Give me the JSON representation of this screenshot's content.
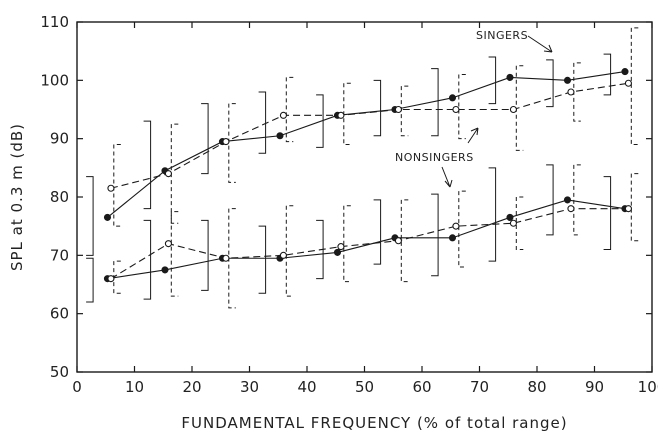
{
  "chart_data": {
    "type": "line",
    "xlabel": "FUNDAMENTAL FREQUENCY (% of total range)",
    "ylabel": "SPL at 0.3 m (dB)",
    "xlim": [
      0,
      100
    ],
    "ylim": [
      50,
      110
    ],
    "xticks": [
      0,
      10,
      20,
      30,
      40,
      50,
      60,
      70,
      80,
      90,
      100
    ],
    "yticks": [
      50,
      60,
      70,
      80,
      90,
      100,
      110
    ],
    "grid": false,
    "annotations": [
      "SINGERS",
      "NONSINGERS"
    ],
    "series": [
      {
        "group": "SINGERS",
        "level": "upper",
        "marker": "filled",
        "line": "solid",
        "x": [
          5,
          15,
          25,
          35,
          45,
          55,
          65,
          75,
          85,
          95
        ],
        "y": [
          76.5,
          84.5,
          89.5,
          90.5,
          94,
          95,
          97,
          100.5,
          100,
          101.5
        ],
        "range_low": [
          70,
          78,
          84,
          87.5,
          88.5,
          90.5,
          90.5,
          96,
          95.5,
          97.5
        ],
        "range_high": [
          83.5,
          93,
          96,
          98,
          97.5,
          100,
          102,
          104,
          103.5,
          104.5
        ]
      },
      {
        "group": "NONSINGERS",
        "level": "upper",
        "marker": "open",
        "line": "dashed",
        "x": [
          5,
          15,
          25,
          35,
          45,
          55,
          65,
          75,
          85,
          95
        ],
        "y": [
          81.5,
          84,
          89.5,
          94,
          94,
          95,
          95,
          95,
          98,
          99.5
        ],
        "range_low": [
          75,
          75.5,
          82.5,
          89.5,
          89,
          90.5,
          90,
          88,
          93,
          89
        ],
        "range_high": [
          89,
          92.5,
          96,
          100.5,
          99.5,
          99,
          101,
          102.5,
          103,
          109
        ]
      },
      {
        "group": "SINGERS",
        "level": "lower",
        "marker": "filled",
        "line": "solid",
        "x": [
          5,
          15,
          25,
          35,
          45,
          55,
          65,
          75,
          85,
          95
        ],
        "y": [
          66,
          67.5,
          69.5,
          69.5,
          70.5,
          73,
          73,
          76.5,
          79.5,
          78
        ],
        "range_low": [
          62,
          62.5,
          64,
          63.5,
          66,
          68.5,
          66.5,
          69,
          73.5,
          71
        ],
        "range_high": [
          69.5,
          76,
          76,
          75,
          76,
          79.5,
          80.5,
          85,
          85.5,
          83.5
        ]
      },
      {
        "group": "NONSINGERS",
        "level": "lower",
        "marker": "open",
        "line": "dashed",
        "x": [
          5,
          15,
          25,
          35,
          45,
          55,
          65,
          75,
          85,
          95
        ],
        "y": [
          66,
          72,
          69.5,
          70,
          71.5,
          72.5,
          75,
          75.5,
          78,
          78
        ],
        "range_low": [
          63.5,
          63,
          61,
          63,
          65.5,
          65.5,
          68,
          71,
          73.5,
          72.5
        ],
        "range_high": [
          69,
          77.5,
          78,
          78.5,
          78.5,
          79.5,
          81,
          80,
          85.5,
          84
        ]
      }
    ]
  }
}
